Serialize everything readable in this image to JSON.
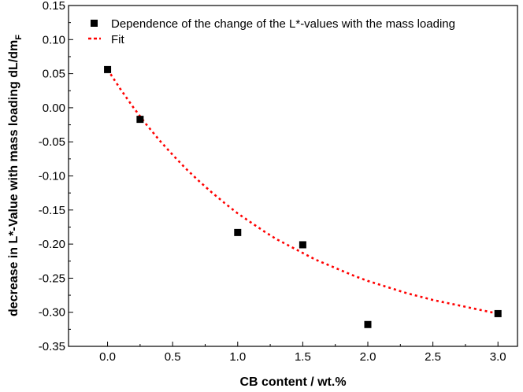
{
  "chart_data": {
    "type": "scatter",
    "xlabel": "CB content / wt.%",
    "ylabel": "decrease in L*-Value with mass loading dL/dm",
    "ylabel_subscript": "F",
    "xlim": [
      -0.3,
      3.15
    ],
    "ylim": [
      -0.35,
      0.15
    ],
    "xticks": [
      0.0,
      0.5,
      1.0,
      1.5,
      2.0,
      2.5,
      3.0
    ],
    "xtick_labels": [
      "0.0",
      "0.5",
      "1.0",
      "1.5",
      "2.0",
      "2.5",
      "3.0"
    ],
    "yticks": [
      0.15,
      0.1,
      0.05,
      0.0,
      -0.05,
      -0.1,
      -0.15,
      -0.2,
      -0.25,
      -0.3,
      -0.35
    ],
    "ytick_labels": [
      "0.15",
      "0.10",
      "0.05",
      "0.00",
      "-0.05",
      "-0.10",
      "-0.15",
      "-0.20",
      "-0.25",
      "-0.30",
      "-0.35"
    ],
    "grid": false,
    "legend_position": "top-right",
    "series": [
      {
        "name": "Dependence of the change of the L*-values with the mass loading",
        "kind": "scatter",
        "marker": "square",
        "color": "#000000",
        "x": [
          0.0,
          0.25,
          1.0,
          1.5,
          2.0,
          3.0
        ],
        "y": [
          0.056,
          -0.017,
          -0.183,
          -0.201,
          -0.318,
          -0.302
        ]
      },
      {
        "name": "Fit",
        "kind": "line",
        "style": "dotted",
        "color": "#ff0000",
        "x": [
          0.0,
          0.1,
          0.2,
          0.3,
          0.4,
          0.5,
          0.6,
          0.7,
          0.8,
          0.9,
          1.0,
          1.1,
          1.2,
          1.3,
          1.4,
          1.5,
          1.6,
          1.7,
          1.8,
          1.9,
          2.0,
          2.1,
          2.2,
          2.3,
          2.4,
          2.5,
          2.6,
          2.7,
          2.8,
          2.9,
          3.0
        ],
        "y": [
          0.056,
          0.027,
          0.0,
          -0.025,
          -0.048,
          -0.069,
          -0.089,
          -0.107,
          -0.124,
          -0.14,
          -0.155,
          -0.168,
          -0.181,
          -0.193,
          -0.203,
          -0.213,
          -0.223,
          -0.231,
          -0.239,
          -0.247,
          -0.254,
          -0.26,
          -0.266,
          -0.272,
          -0.277,
          -0.282,
          -0.286,
          -0.29,
          -0.294,
          -0.298,
          -0.302
        ]
      }
    ]
  }
}
